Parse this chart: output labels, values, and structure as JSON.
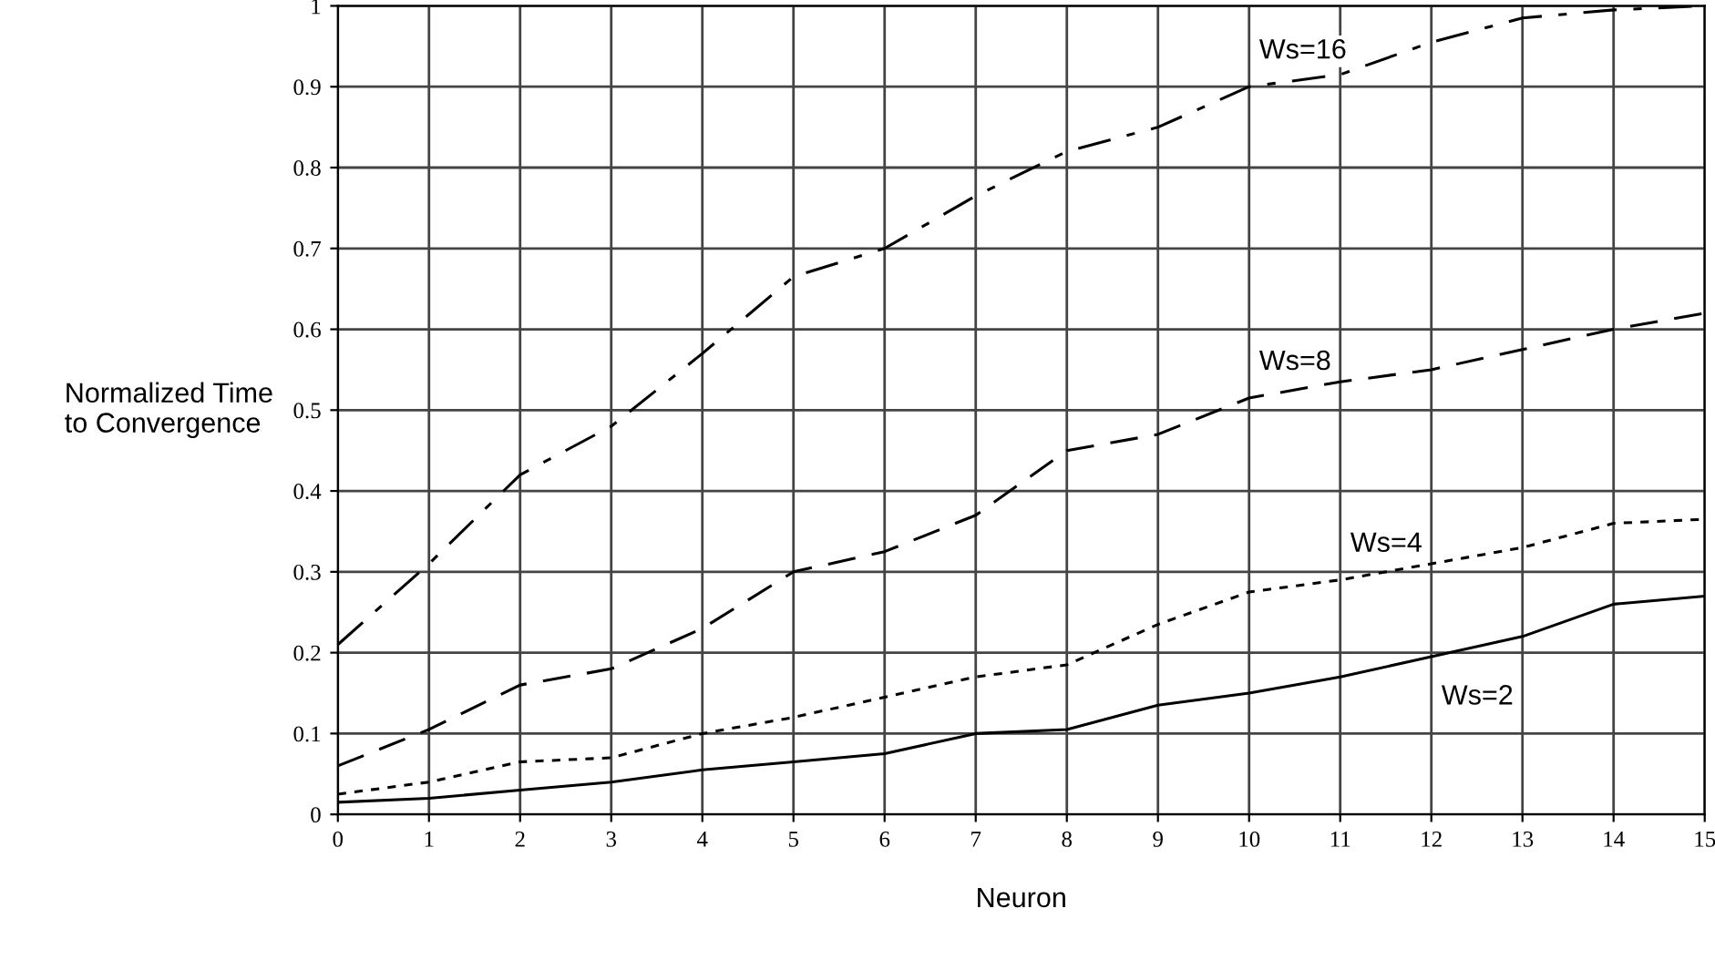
{
  "chart_data": {
    "type": "line",
    "xlabel": "Neuron",
    "ylabel": "Normalized Time\nto Convergence",
    "x": [
      0,
      1,
      2,
      3,
      4,
      5,
      6,
      7,
      8,
      9,
      10,
      11,
      12,
      13,
      14,
      15
    ],
    "series": [
      {
        "name": "Ws=16",
        "color": "#000000",
        "line_style": "dashed",
        "values": [
          0.21,
          0.31,
          0.42,
          0.48,
          0.57,
          0.665,
          0.7,
          0.765,
          0.82,
          0.85,
          0.9,
          0.915,
          0.955,
          0.985,
          0.995,
          1.0
        ]
      },
      {
        "name": "Ws=8",
        "color": "#000000",
        "line_style": "dashed",
        "values": [
          0.06,
          0.105,
          0.16,
          0.18,
          0.23,
          0.3,
          0.325,
          0.37,
          0.45,
          0.47,
          0.515,
          0.535,
          0.55,
          0.575,
          0.6,
          0.62
        ]
      },
      {
        "name": "Ws=4",
        "color": "#000000",
        "line_style": "dotted",
        "values": [
          0.025,
          0.04,
          0.065,
          0.07,
          0.1,
          0.12,
          0.145,
          0.17,
          0.185,
          0.235,
          0.275,
          0.29,
          0.31,
          0.33,
          0.36,
          0.365
        ]
      },
      {
        "name": "Ws=2",
        "color": "#000000",
        "line_style": "solid",
        "values": [
          0.015,
          0.02,
          0.03,
          0.04,
          0.055,
          0.065,
          0.075,
          0.1,
          0.105,
          0.135,
          0.15,
          0.17,
          0.195,
          0.22,
          0.26,
          0.27
        ]
      }
    ],
    "xlim": [
      0,
      15
    ],
    "xticks": [
      0,
      1,
      2,
      3,
      4,
      5,
      6,
      7,
      8,
      9,
      10,
      11,
      12,
      13,
      14,
      15
    ],
    "ylim": [
      0,
      1
    ],
    "yticks": [
      0,
      0.1,
      0.2,
      0.3,
      0.4,
      0.5,
      0.6,
      0.7,
      0.8,
      0.9,
      1
    ],
    "grid": true,
    "marker": "none",
    "legend": false
  }
}
